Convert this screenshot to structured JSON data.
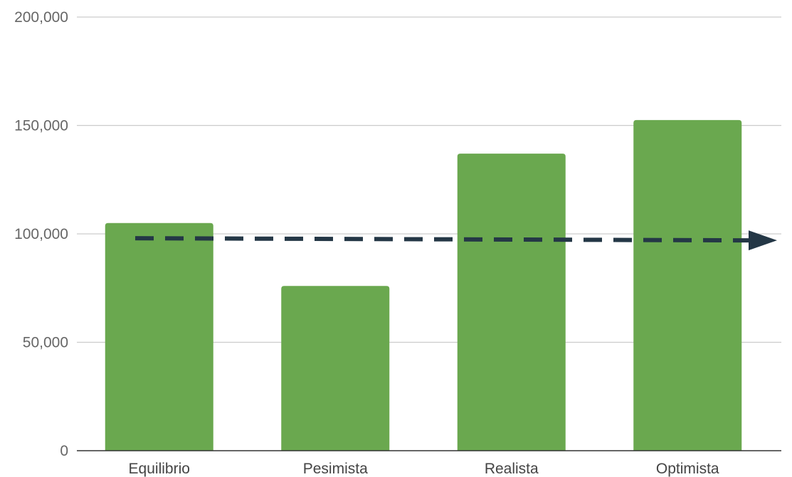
{
  "chart_data": {
    "type": "bar",
    "title": "",
    "xlabel": "",
    "ylabel": "",
    "categories": [
      "Equilibrio",
      "Pesimista",
      "Realista",
      "Optimista"
    ],
    "values": [
      105000,
      76000,
      137000,
      152500
    ],
    "ylim": [
      0,
      200000
    ],
    "yticks": [
      0,
      50000,
      100000,
      150000,
      200000
    ],
    "ytick_labels": [
      "0",
      "50,000",
      "100,000",
      "150,000",
      "200,000"
    ],
    "grid": true,
    "legend": "none",
    "reference_line": {
      "style": "dashed-arrow",
      "y_start": 98000,
      "y_end": 97000
    },
    "colors": {
      "bar": "#6aa84f",
      "grid": "#cccccc",
      "axis": "#333333",
      "reference_line": "#243746",
      "tick_text": "#666666",
      "category_text": "#444444"
    }
  }
}
